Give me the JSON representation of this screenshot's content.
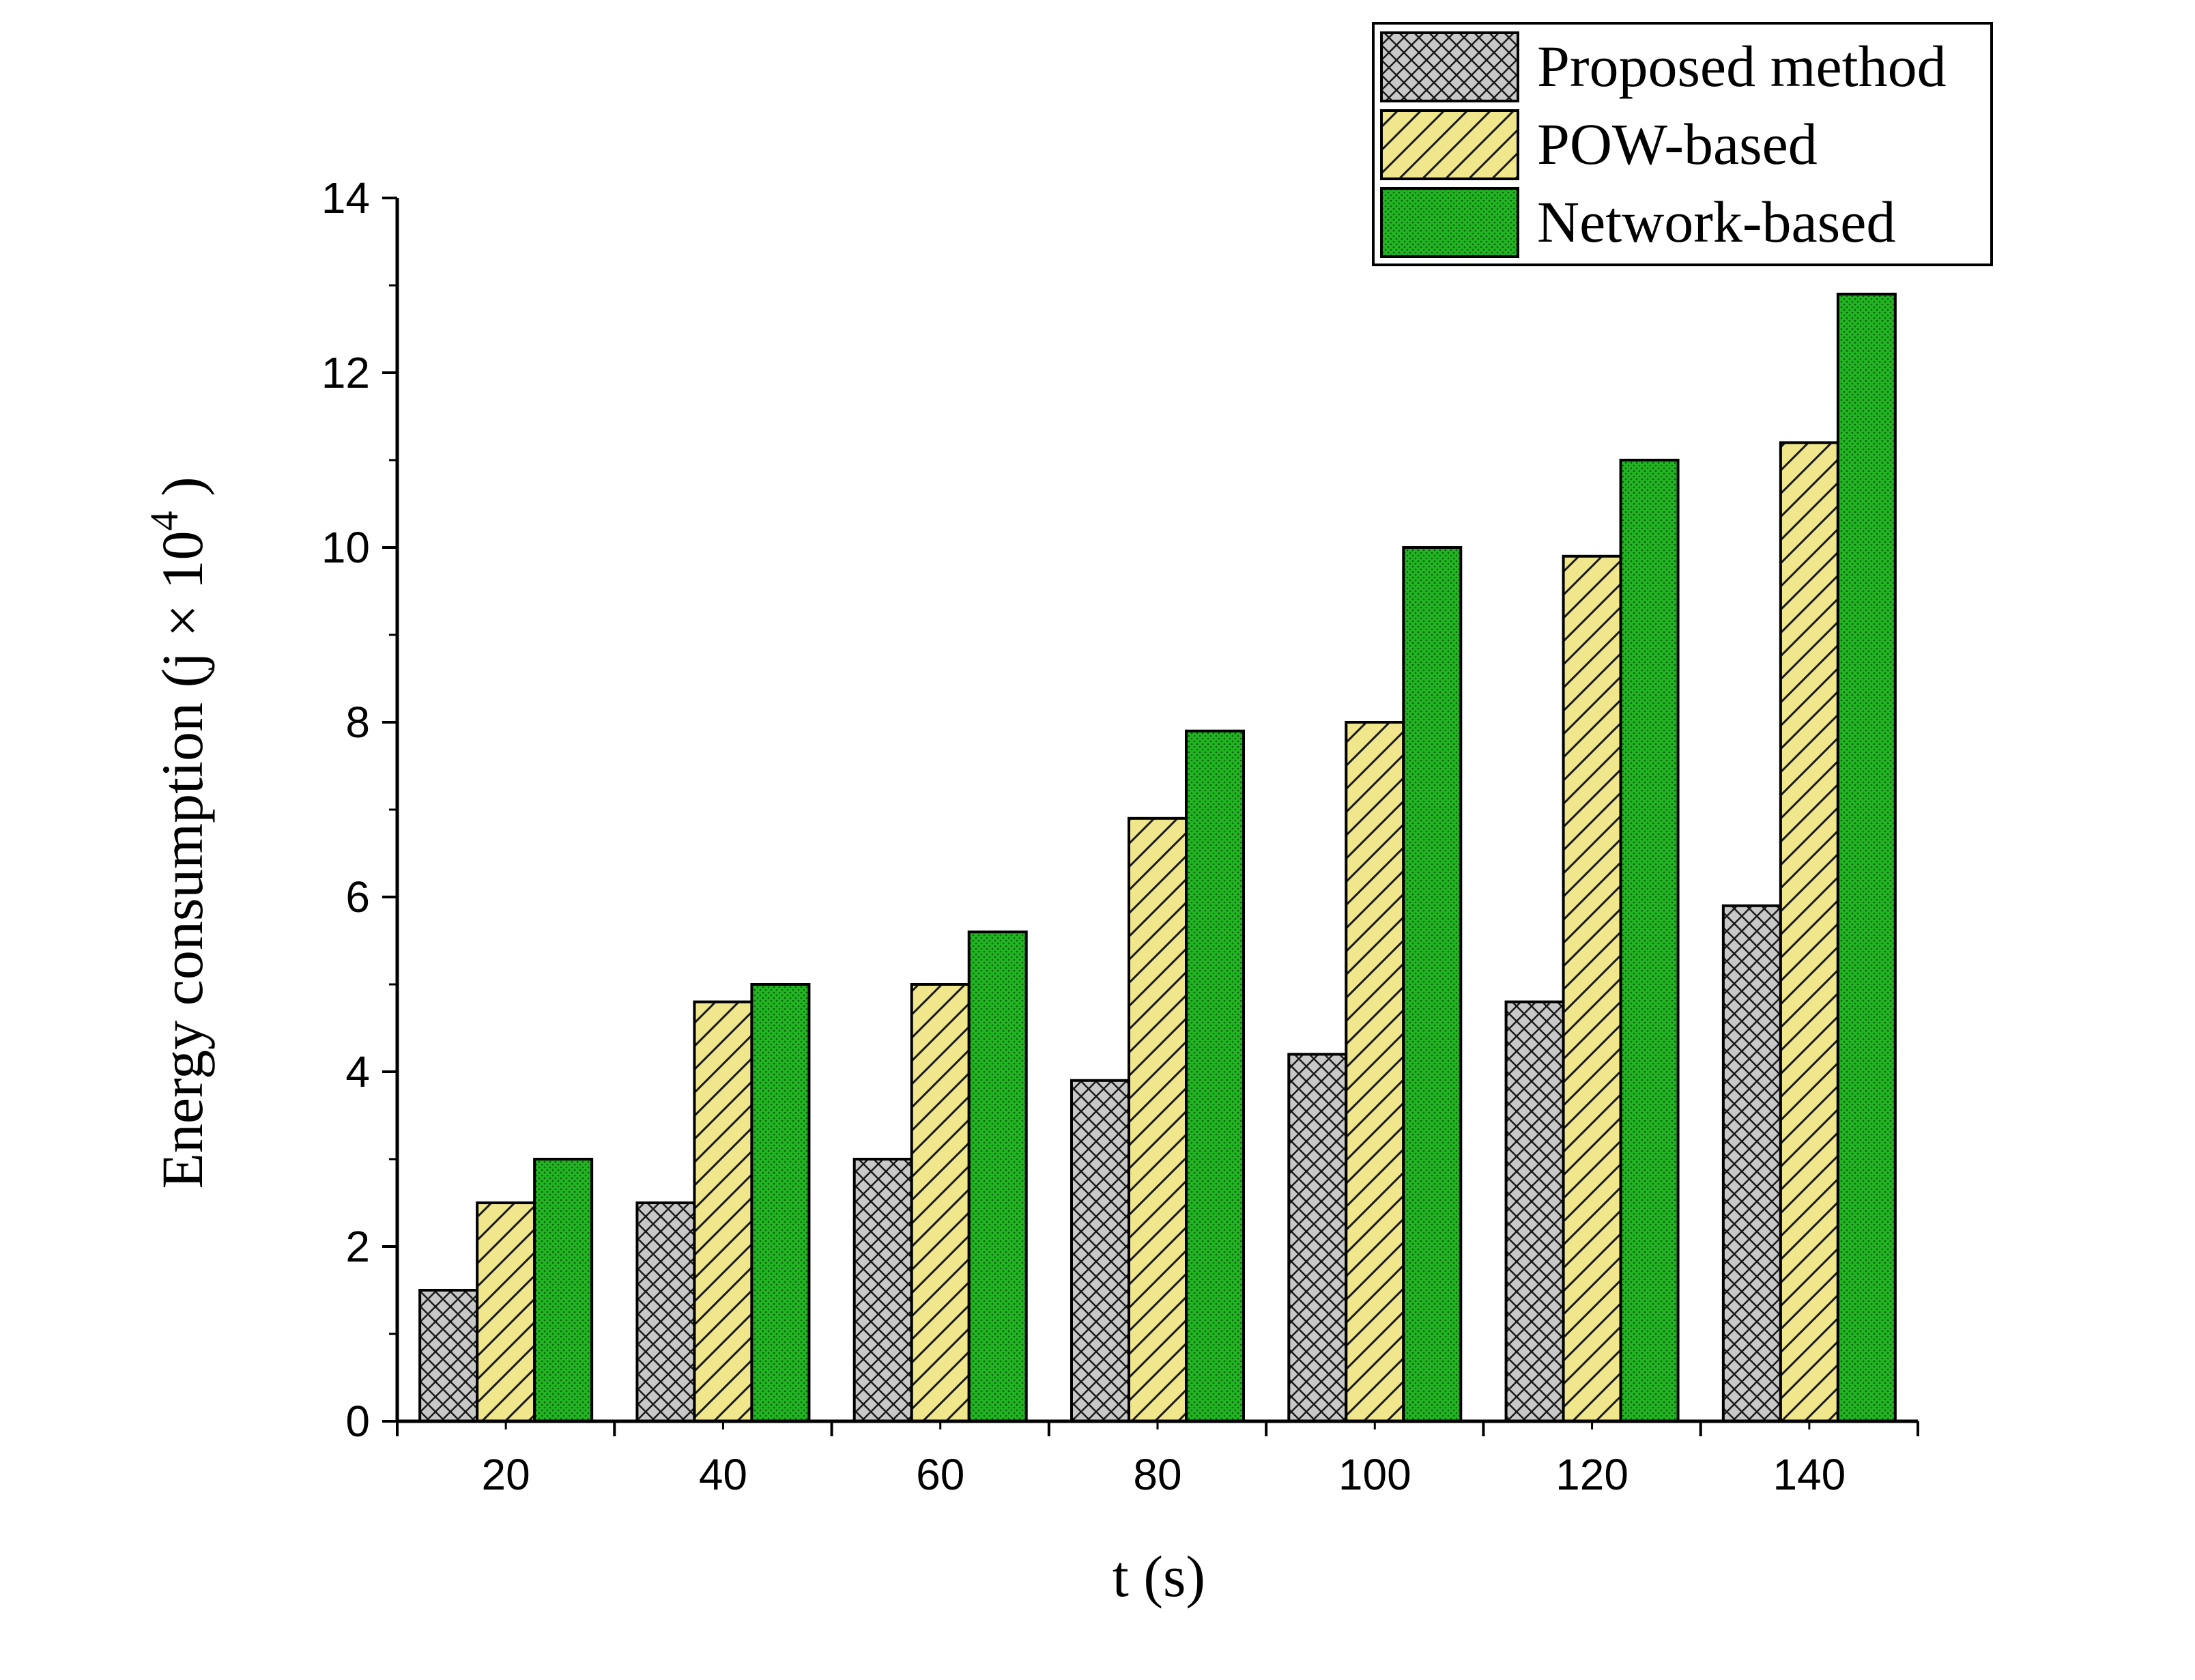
{
  "chart_data": {
    "type": "bar",
    "title": "",
    "xlabel": "t (s)",
    "ylabel": {
      "prefix": "Energy consumption (j × 10",
      "superscript": "4",
      "suffix": " )"
    },
    "categories": [
      "20",
      "40",
      "60",
      "80",
      "100",
      "120",
      "140"
    ],
    "ylim": [
      0,
      14
    ],
    "yticks": [
      "0",
      "2",
      "4",
      "6",
      "8",
      "10",
      "12",
      "14"
    ],
    "grid": false,
    "legend_position": "top-right",
    "series": [
      {
        "name": "Proposed method",
        "values": [
          1.5,
          2.5,
          3.0,
          3.9,
          4.2,
          4.8,
          5.9
        ],
        "color": "#c8c8c8",
        "pattern": "crosshatch"
      },
      {
        "name": "POW-based",
        "values": [
          2.5,
          4.8,
          5.0,
          6.9,
          8.0,
          9.9,
          11.2
        ],
        "color": "#f0e68c",
        "pattern": "diagonal"
      },
      {
        "name": "Network-based",
        "values": [
          3.0,
          5.0,
          5.6,
          7.9,
          10.0,
          11.0,
          12.9
        ],
        "color": "#22b422",
        "pattern": "dots"
      }
    ]
  }
}
